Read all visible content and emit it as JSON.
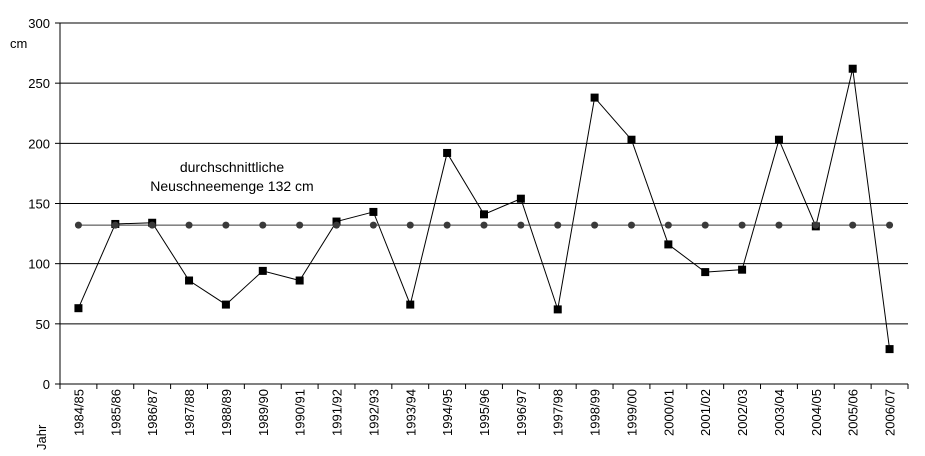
{
  "chart_data": {
    "type": "line",
    "ylabel": "cm",
    "xlabel": "Jahr",
    "ylim": [
      0,
      300
    ],
    "yticks": [
      0,
      50,
      100,
      150,
      200,
      250,
      300
    ],
    "grid": "horizontal",
    "categories": [
      "1984/85",
      "1985/86",
      "1986/87",
      "1987/88",
      "1988/89",
      "1989/90",
      "1990/91",
      "1991/92",
      "1992/93",
      "1993/94",
      "1994/95",
      "1995/96",
      "1996/97",
      "1997/98",
      "1998/99",
      "1999/00",
      "2000/01",
      "2001/02",
      "2002/03",
      "2003/04",
      "2004/05",
      "2005/06",
      "2006/07"
    ],
    "series": [
      {
        "values": [
          63,
          133,
          134,
          86,
          66,
          94,
          86,
          135,
          143,
          66,
          192,
          141,
          154,
          62,
          238,
          203,
          116,
          93,
          95,
          203,
          131,
          262,
          29
        ],
        "marker": "square",
        "color": "#000000"
      },
      {
        "values": [
          132,
          132,
          132,
          132,
          132,
          132,
          132,
          132,
          132,
          132,
          132,
          132,
          132,
          132,
          132,
          132,
          132,
          132,
          132,
          132,
          132,
          132,
          132
        ],
        "marker": "circle",
        "color": "#3a3a3a"
      }
    ],
    "annotation": {
      "line1": "durchschnittliche",
      "line2": "Neuschneemenge 132 cm"
    }
  }
}
